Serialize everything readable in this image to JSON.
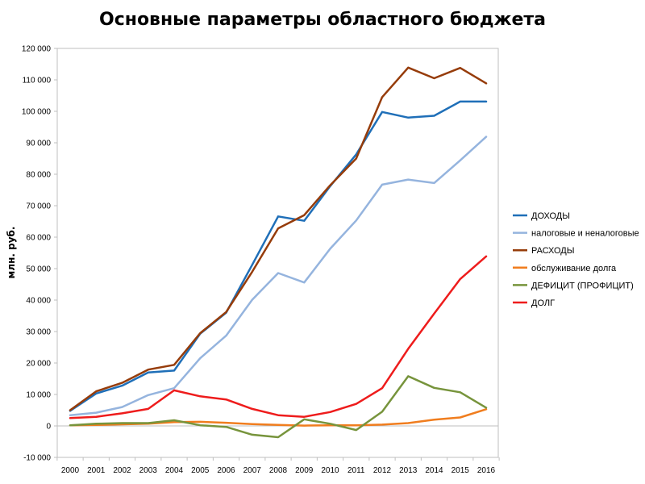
{
  "chart_data": {
    "type": "line",
    "title": "Основные параметры областного бюджета",
    "xlabel": "",
    "ylabel": "млн. руб.",
    "categories": [
      "2000",
      "2001",
      "2002",
      "2003",
      "2004",
      "2005",
      "2006",
      "2007",
      "2008",
      "2009",
      "2010",
      "2011",
      "2012",
      "2013",
      "2014",
      "2015",
      "2016"
    ],
    "y_ticks": [
      "-10 000",
      "0",
      "10 000",
      "20 000",
      "30 000",
      "40 000",
      "50 000",
      "60 000",
      "70 000",
      "80 000",
      "90 000",
      "100 000",
      "110 000",
      "120 000"
    ],
    "ylim": [
      -10000,
      120000
    ],
    "y_step": 10000,
    "grid": false,
    "legend_position": "right",
    "series": [
      {
        "name": "ДОХОДЫ",
        "color": "#1f6fb8",
        "values": [
          4800,
          10300,
          12800,
          17000,
          17600,
          29300,
          36000,
          51200,
          66600,
          65200,
          76200,
          86300,
          99800,
          98000,
          98600,
          103100,
          103100
        ]
      },
      {
        "name": "налоговые и неналоговые",
        "color": "#95b4de",
        "values": [
          3400,
          4200,
          6000,
          9800,
          12000,
          21500,
          28700,
          40100,
          48600,
          45600,
          56300,
          65300,
          76700,
          78300,
          77200,
          84400,
          91900
        ]
      },
      {
        "name": "РАСХОДЫ",
        "color": "#963c0a",
        "values": [
          5000,
          11000,
          13700,
          17900,
          19400,
          29500,
          36200,
          49000,
          62800,
          67000,
          76500,
          85000,
          104500,
          113900,
          110500,
          113800,
          108900
        ]
      },
      {
        "name": "обслуживание долга",
        "color": "#f07d1e",
        "values": [
          200,
          300,
          500,
          700,
          1200,
          1300,
          1000,
          600,
          300,
          100,
          200,
          200,
          400,
          900,
          2000,
          2700,
          5300
        ]
      },
      {
        "name": "ДЕФИЦИТ (ПРОФИЦИТ)",
        "color": "#77943c",
        "values": [
          200,
          700,
          900,
          900,
          1800,
          200,
          -300,
          -2800,
          -3600,
          2100,
          700,
          -1300,
          4500,
          15800,
          12100,
          10700,
          5800
        ]
      },
      {
        "name": "ДОЛГ",
        "color": "#ee1c1c",
        "values": [
          2500,
          2900,
          4000,
          5400,
          11300,
          9400,
          8400,
          5400,
          3400,
          2900,
          4400,
          7000,
          12000,
          24500,
          35700,
          46700,
          53900
        ]
      }
    ]
  }
}
